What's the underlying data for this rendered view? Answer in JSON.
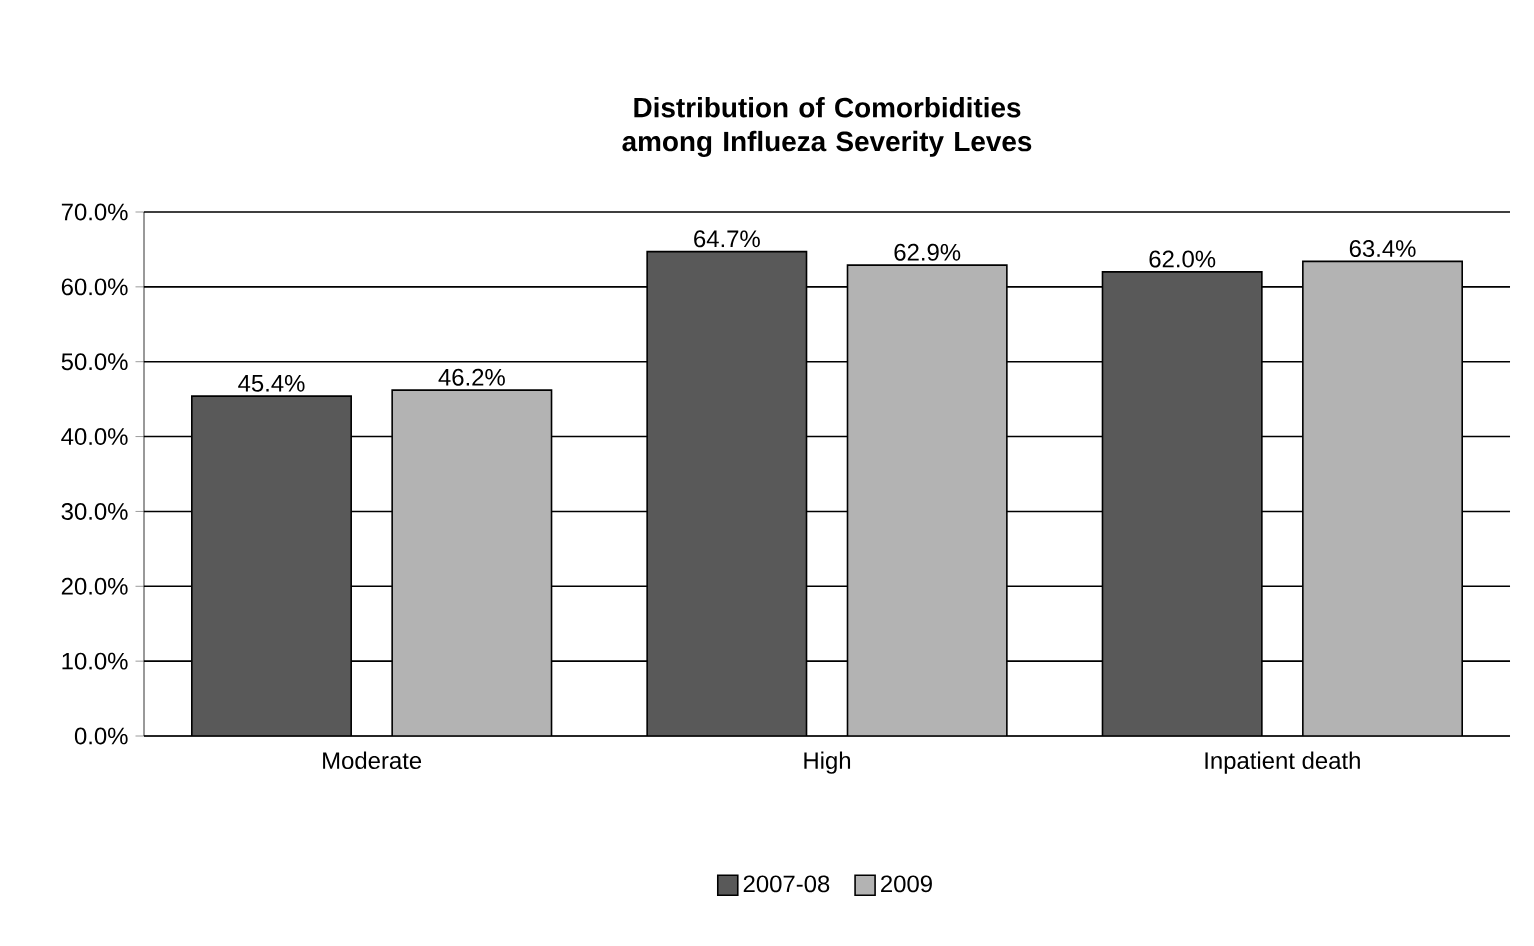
{
  "chart_data": {
    "type": "bar",
    "title": "Distribution of Comorbidities among Influeza Severity Leves",
    "categories": [
      "Moderate",
      "High",
      "Inpatient death"
    ],
    "series": [
      {
        "name": "2007-08",
        "color": "#595959",
        "values": [
          45.4,
          64.7,
          62.0
        ],
        "value_labels": [
          "45.4%",
          "64.7%",
          "62.0%"
        ]
      },
      {
        "name": "2009",
        "color": "#b3b3b3",
        "values": [
          46.2,
          62.9,
          63.4
        ],
        "value_labels": [
          "46.2%",
          "62.9%",
          "63.4%"
        ]
      }
    ],
    "ylim": [
      0,
      70
    ],
    "yticks": [
      {
        "value": 0,
        "label": "0.0%"
      },
      {
        "value": 10,
        "label": "10.0%"
      },
      {
        "value": 20,
        "label": "20.0%"
      },
      {
        "value": 30,
        "label": "30.0%"
      },
      {
        "value": 40,
        "label": "40.0%"
      },
      {
        "value": 50,
        "label": "50.0%"
      },
      {
        "value": 60,
        "label": "60.0%"
      },
      {
        "value": 70,
        "label": "70.0%"
      }
    ],
    "grid": "y",
    "legend": "bottom"
  }
}
